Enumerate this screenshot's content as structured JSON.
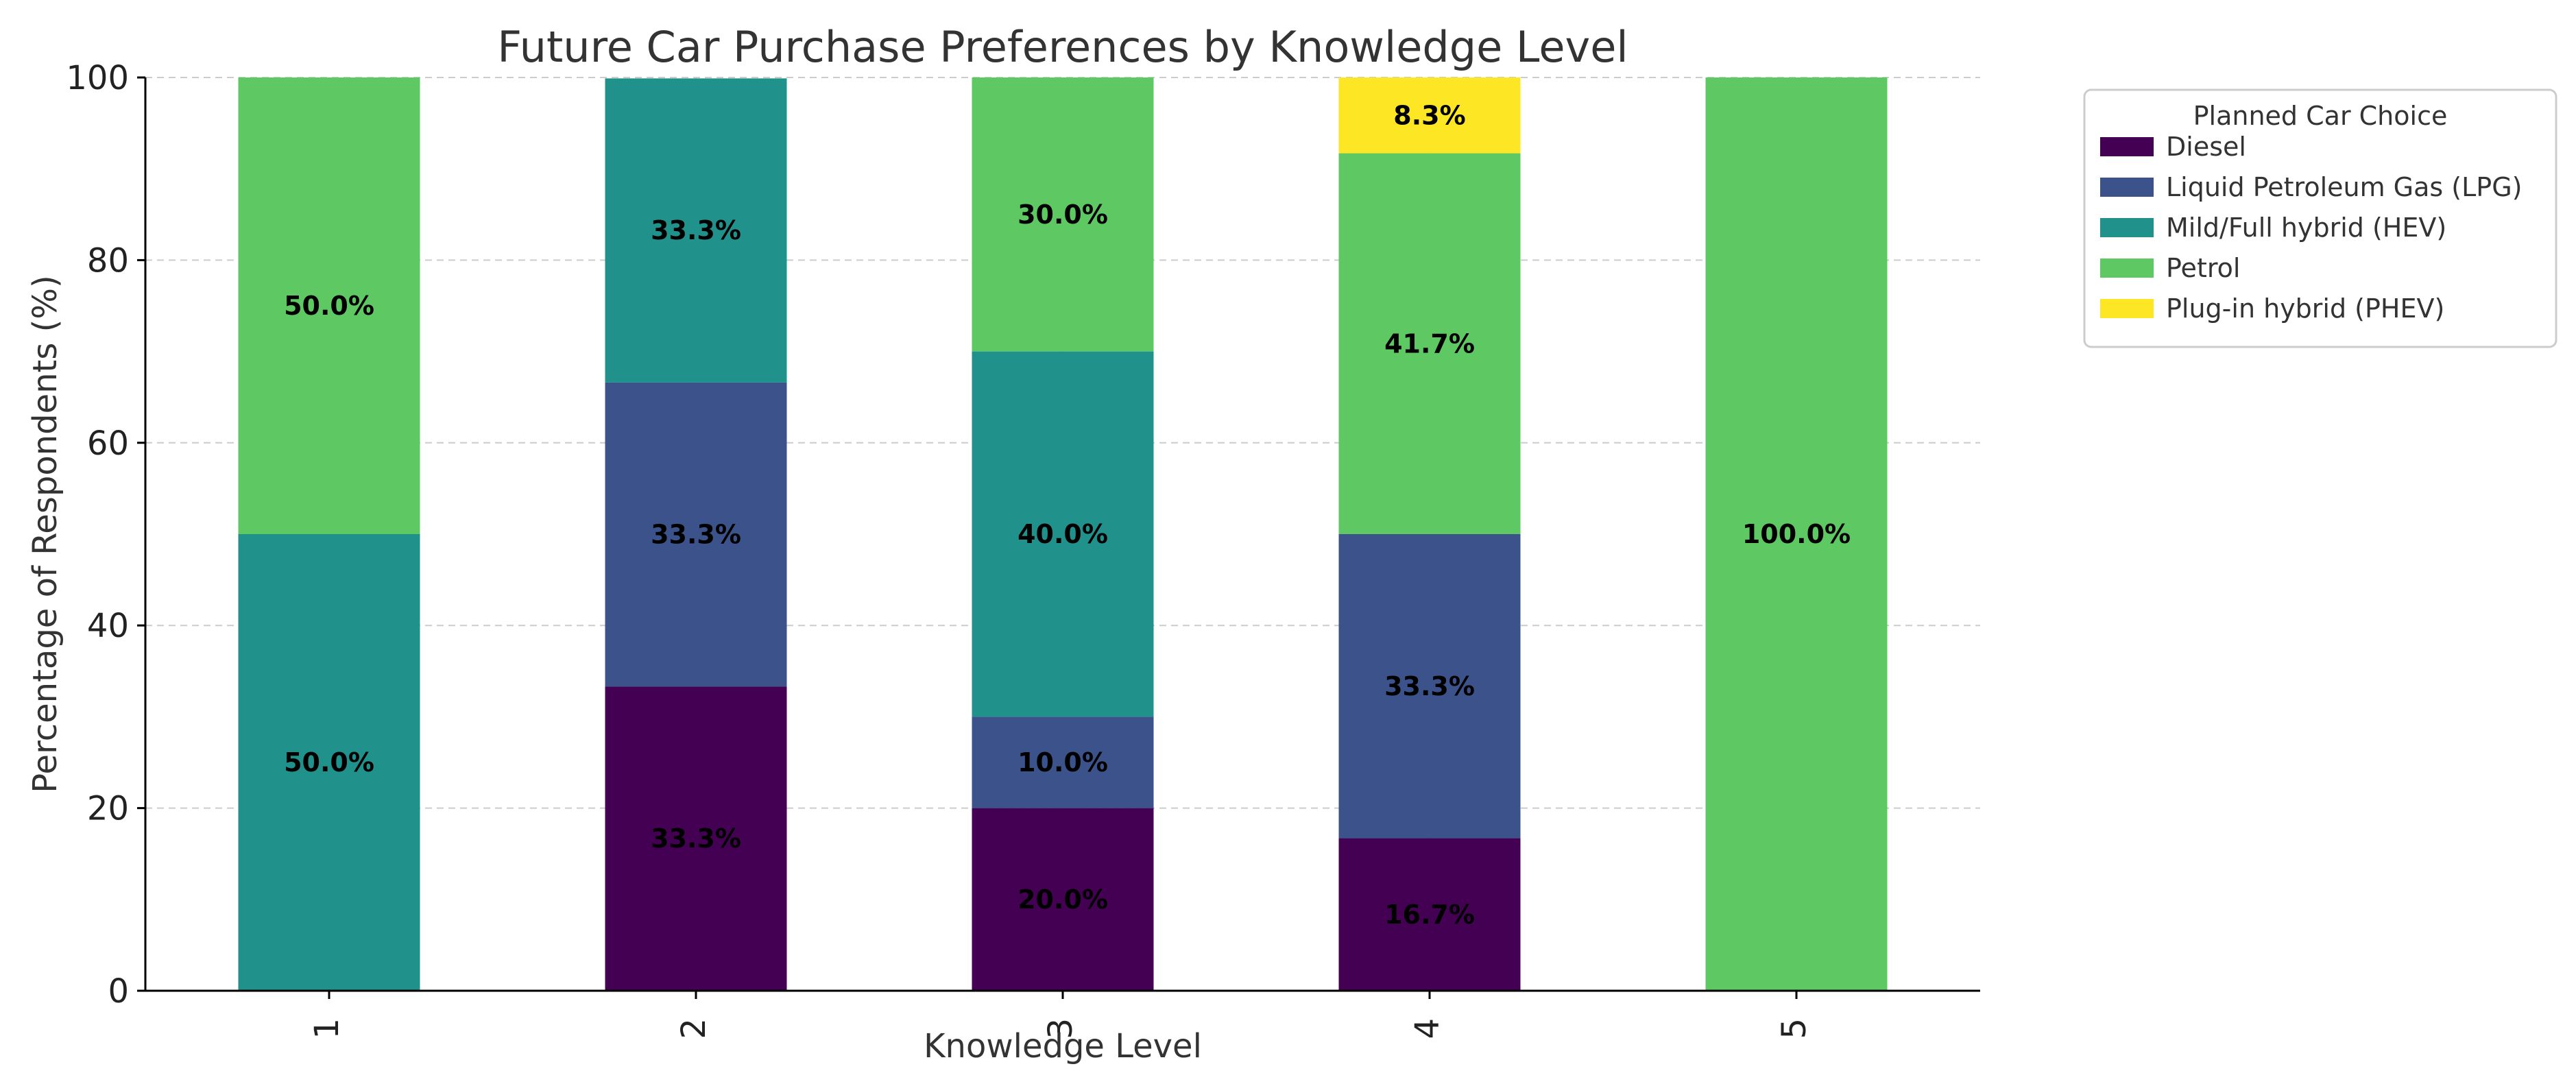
{
  "chart_data": {
    "type": "bar",
    "stacked": true,
    "title": "Future Car Purchase Preferences by Knowledge Level",
    "xlabel": "Knowledge Level",
    "ylabel": "Percentage of Respondents (%)",
    "ylim": [
      0,
      100
    ],
    "yticks": [
      0,
      20,
      40,
      60,
      80,
      100
    ],
    "categories": [
      "1",
      "2",
      "3",
      "4",
      "5"
    ],
    "grid": true,
    "legend": {
      "title": "Planned Car Choice",
      "placement": "outside-top-right"
    },
    "series": [
      {
        "name": "Diesel",
        "color": "#440154",
        "values": [
          0,
          33.3,
          20.0,
          16.7,
          0
        ],
        "labels": [
          "",
          "33.3%",
          "20.0%",
          "16.7%",
          ""
        ]
      },
      {
        "name": "Liquid Petroleum Gas (LPG)",
        "color": "#3b528b",
        "values": [
          0,
          33.3,
          10.0,
          33.3,
          0
        ],
        "labels": [
          "",
          "33.3%",
          "10.0%",
          "33.3%",
          ""
        ]
      },
      {
        "name": "Mild/Full hybrid (HEV)",
        "color": "#21918c",
        "values": [
          50.0,
          33.3,
          40.0,
          0,
          0
        ],
        "labels": [
          "50.0%",
          "33.3%",
          "40.0%",
          "",
          ""
        ]
      },
      {
        "name": "Petrol",
        "color": "#5ec962",
        "values": [
          50.0,
          0,
          30.0,
          41.7,
          100.0
        ],
        "labels": [
          "50.0%",
          "",
          "30.0%",
          "41.7%",
          "100.0%"
        ]
      },
      {
        "name": "Plug-in hybrid (PHEV)",
        "color": "#fde725",
        "values": [
          0,
          0,
          0,
          8.3,
          0
        ],
        "labels": [
          "",
          "",
          "",
          "8.3%",
          ""
        ]
      }
    ]
  }
}
